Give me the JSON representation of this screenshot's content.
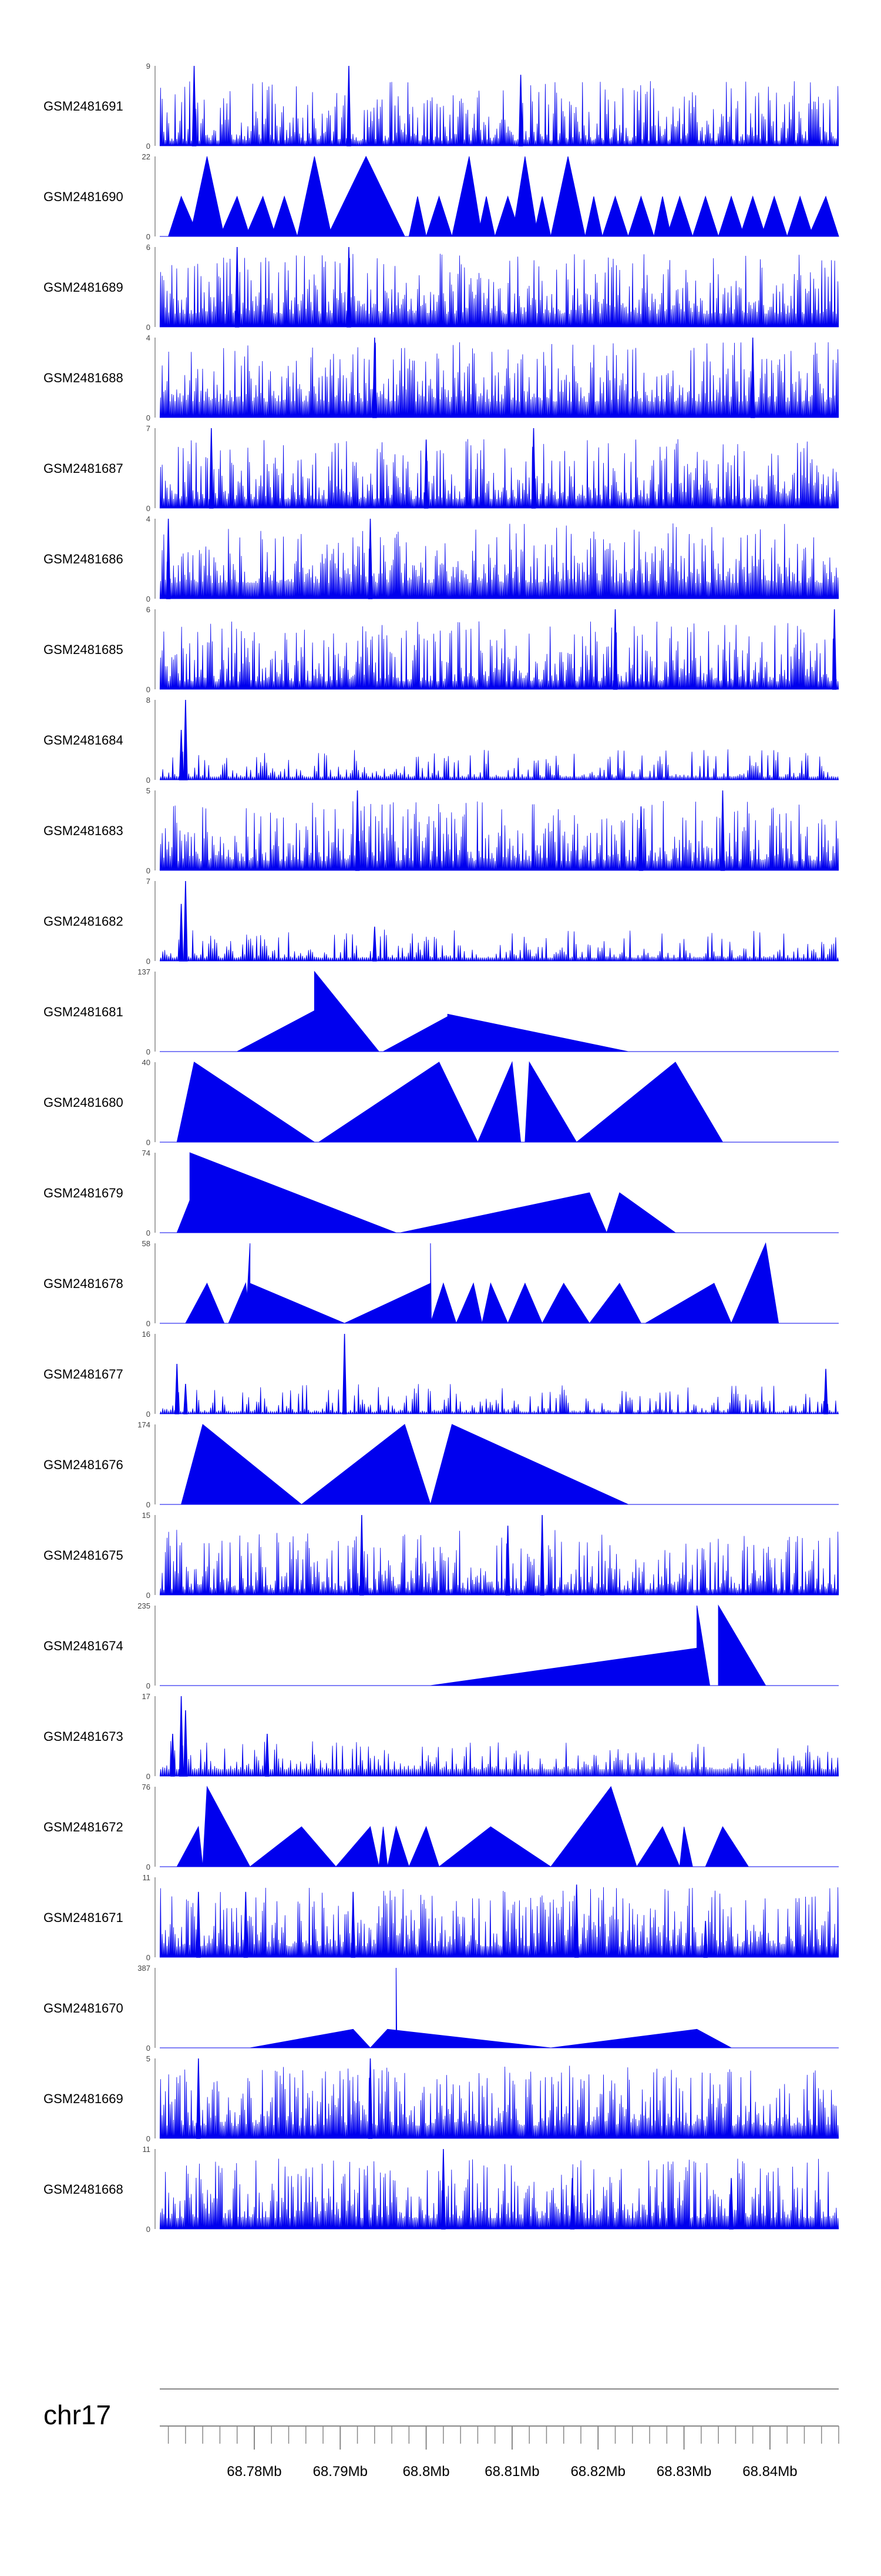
{
  "colors": {
    "signal": "#0000ee",
    "axis": "#888888",
    "text": "#000000"
  },
  "chart_data": {
    "type": "area",
    "title": "",
    "genome_axis": {
      "chromosome": "chr17",
      "unit": "Mb",
      "xlim": [
        68.769,
        68.848
      ],
      "ticks": [
        68.78,
        68.79,
        68.8,
        68.81,
        68.82,
        68.83,
        68.84
      ],
      "tick_labels": [
        "68.78Mb",
        "68.79Mb",
        "68.8Mb",
        "68.81Mb",
        "68.82Mb",
        "68.83Mb",
        "68.84Mb"
      ],
      "minor_tick_step": 0.002
    },
    "tracks": [
      {
        "name": "GSM2481691",
        "ymax": 9,
        "style": "dense",
        "baseline": 0.6,
        "seed": 11,
        "spikes": [
          [
            68.773,
            9
          ],
          [
            68.791,
            9
          ],
          [
            68.811,
            8
          ]
        ]
      },
      {
        "name": "GSM2481690",
        "ymax": 22,
        "style": "peaks",
        "seed": 12,
        "peaks": [
          [
            68.77,
            68.7715,
            68.7735,
            11
          ],
          [
            68.7725,
            68.7745,
            68.7765,
            22
          ],
          [
            68.776,
            68.778,
            68.7795,
            11
          ],
          [
            68.779,
            68.781,
            68.7825,
            11
          ],
          [
            68.782,
            68.7835,
            68.785,
            11
          ],
          [
            68.785,
            68.787,
            68.789,
            22
          ],
          [
            68.7885,
            68.793,
            68.7975,
            22
          ],
          [
            68.798,
            68.799,
            68.8,
            11
          ],
          [
            68.8,
            68.8015,
            68.803,
            11
          ],
          [
            68.803,
            68.805,
            68.8065,
            22
          ],
          [
            68.806,
            68.807,
            68.808,
            11
          ],
          [
            68.808,
            68.8095,
            68.811,
            11
          ],
          [
            68.81,
            68.8115,
            68.813,
            22
          ],
          [
            68.8125,
            68.8135,
            68.8145,
            11
          ],
          [
            68.8145,
            68.8165,
            68.8185,
            22
          ],
          [
            68.8185,
            68.8195,
            68.8205,
            11
          ],
          [
            68.8205,
            68.822,
            68.8235,
            11
          ],
          [
            68.8235,
            68.825,
            68.8265,
            11
          ],
          [
            68.8265,
            68.8275,
            68.8285,
            11
          ],
          [
            68.828,
            68.8295,
            68.831,
            11
          ],
          [
            68.831,
            68.8325,
            68.834,
            11
          ],
          [
            68.834,
            68.8355,
            68.837,
            11
          ],
          [
            68.8365,
            68.838,
            68.8395,
            11
          ],
          [
            68.839,
            68.8405,
            68.842,
            11
          ],
          [
            68.842,
            68.8435,
            68.845,
            11
          ],
          [
            68.8445,
            68.8465,
            68.848,
            11
          ]
        ]
      },
      {
        "name": "GSM2481689",
        "ymax": 6,
        "style": "dense",
        "baseline": 1.0,
        "seed": 13,
        "spikes": [
          [
            68.778,
            6
          ],
          [
            68.791,
            6
          ]
        ]
      },
      {
        "name": "GSM2481688",
        "ymax": 4,
        "style": "dense",
        "baseline": 0.8,
        "seed": 14,
        "spikes": [
          [
            68.794,
            4
          ],
          [
            68.838,
            4
          ]
        ]
      },
      {
        "name": "GSM2481687",
        "ymax": 7,
        "style": "dense",
        "baseline": 0.8,
        "seed": 15,
        "spikes": [
          [
            68.775,
            7
          ],
          [
            68.8125,
            7
          ],
          [
            68.8,
            6
          ]
        ]
      },
      {
        "name": "GSM2481686",
        "ymax": 4,
        "style": "dense",
        "baseline": 0.8,
        "seed": 16,
        "spikes": [
          [
            68.77,
            4
          ],
          [
            68.7935,
            4
          ]
        ]
      },
      {
        "name": "GSM2481685",
        "ymax": 6,
        "style": "dense",
        "baseline": 0.6,
        "seed": 17,
        "spikes": [
          [
            68.822,
            6
          ],
          [
            68.8475,
            6
          ]
        ]
      },
      {
        "name": "GSM2481684",
        "ymax": 8,
        "style": "sparse",
        "baseline": 0.3,
        "seed": 18,
        "spikes": [
          [
            68.772,
            8
          ],
          [
            68.7715,
            5
          ]
        ]
      },
      {
        "name": "GSM2481683",
        "ymax": 5,
        "style": "dense",
        "baseline": 0.6,
        "seed": 19,
        "spikes": [
          [
            68.792,
            5
          ],
          [
            68.8345,
            5
          ],
          [
            68.825,
            4
          ]
        ]
      },
      {
        "name": "GSM2481682",
        "ymax": 7,
        "style": "sparse",
        "baseline": 0.3,
        "seed": 20,
        "spikes": [
          [
            68.772,
            7
          ],
          [
            68.7715,
            5
          ],
          [
            68.794,
            3
          ]
        ]
      },
      {
        "name": "GSM2481681",
        "ymax": 137,
        "style": "peaks",
        "seed": 21,
        "peaks": [
          [
            68.778,
            68.787,
            68.787,
            70
          ],
          [
            68.787,
            68.787,
            68.7945,
            137
          ],
          [
            68.795,
            68.8025,
            68.8025,
            60
          ],
          [
            68.8025,
            68.8025,
            68.8235,
            64
          ]
        ]
      },
      {
        "name": "GSM2481680",
        "ymax": 40,
        "style": "peaks",
        "seed": 22,
        "peaks": [
          [
            68.771,
            68.773,
            68.787,
            40
          ],
          [
            68.7875,
            68.8015,
            68.806,
            40
          ],
          [
            68.806,
            68.81,
            68.811,
            40
          ],
          [
            68.8115,
            68.812,
            68.8175,
            40
          ],
          [
            68.8175,
            68.829,
            68.8345,
            40
          ]
        ]
      },
      {
        "name": "GSM2481679",
        "ymax": 74,
        "style": "peaks",
        "seed": 23,
        "peaks": [
          [
            68.771,
            68.7725,
            68.7725,
            30
          ],
          [
            68.7725,
            68.7725,
            68.7965,
            74
          ],
          [
            68.797,
            68.819,
            68.821,
            37
          ],
          [
            68.821,
            68.8225,
            68.829,
            37
          ]
        ]
      },
      {
        "name": "GSM2481678",
        "ymax": 58,
        "style": "peaks",
        "seed": 24,
        "peaks": [
          [
            68.772,
            68.7745,
            68.7765,
            29
          ],
          [
            68.777,
            68.779,
            68.7795,
            29
          ],
          [
            68.779,
            68.7795,
            68.7795,
            58
          ],
          [
            68.7795,
            68.7795,
            68.7905,
            29
          ],
          [
            68.7905,
            68.8005,
            68.8005,
            29
          ],
          [
            68.8005,
            68.8005,
            68.8006,
            58
          ],
          [
            68.8005,
            68.802,
            68.8035,
            29
          ],
          [
            68.8035,
            68.8055,
            68.8065,
            29
          ],
          [
            68.8065,
            68.8075,
            68.8095,
            29
          ],
          [
            68.8095,
            68.8115,
            68.8135,
            29
          ],
          [
            68.8135,
            68.816,
            68.819,
            29
          ],
          [
            68.819,
            68.8225,
            68.825,
            29
          ],
          [
            68.8255,
            68.8335,
            68.8355,
            29
          ],
          [
            68.8355,
            68.8395,
            68.841,
            58
          ],
          [
            68.8395,
            68.8395,
            68.8396,
            58
          ]
        ]
      },
      {
        "name": "GSM2481677",
        "ymax": 16,
        "style": "sparse",
        "baseline": 0.4,
        "seed": 25,
        "spikes": [
          [
            68.771,
            10
          ],
          [
            68.772,
            6
          ],
          [
            68.7905,
            16
          ],
          [
            68.8465,
            9
          ]
        ]
      },
      {
        "name": "GSM2481676",
        "ymax": 174,
        "style": "peaks",
        "seed": 26,
        "peaks": [
          [
            68.7715,
            68.774,
            68.7855,
            174
          ],
          [
            68.7855,
            68.7975,
            68.8005,
            174
          ],
          [
            68.8005,
            68.803,
            68.8235,
            174
          ]
        ]
      },
      {
        "name": "GSM2481675",
        "ymax": 15,
        "style": "dense",
        "baseline": 1.0,
        "seed": 27,
        "spikes": [
          [
            68.7925,
            15
          ],
          [
            68.8135,
            15
          ],
          [
            68.8095,
            13
          ]
        ]
      },
      {
        "name": "GSM2481674",
        "ymax": 235,
        "style": "peaks",
        "seed": 28,
        "peaks": [
          [
            68.8005,
            68.8315,
            68.8315,
            110
          ],
          [
            68.8315,
            68.8315,
            68.833,
            235
          ],
          [
            68.834,
            68.834,
            68.8395,
            235
          ]
        ]
      },
      {
        "name": "GSM2481673",
        "ymax": 17,
        "style": "sparse",
        "baseline": 1.5,
        "seed": 29,
        "spikes": [
          [
            68.7715,
            17
          ],
          [
            68.772,
            14
          ],
          [
            68.7705,
            9
          ],
          [
            68.7815,
            9
          ]
        ]
      },
      {
        "name": "GSM2481672",
        "ymax": 76,
        "style": "peaks",
        "seed": 30,
        "peaks": [
          [
            68.771,
            68.7735,
            68.774,
            38
          ],
          [
            68.774,
            68.7745,
            68.7795,
            76
          ],
          [
            68.7795,
            68.7855,
            68.7895,
            38
          ],
          [
            68.7895,
            68.7935,
            68.7945,
            38
          ],
          [
            68.7945,
            68.795,
            68.7955,
            38
          ],
          [
            68.7955,
            68.7965,
            68.798,
            38
          ],
          [
            68.798,
            68.8,
            68.8015,
            38
          ],
          [
            68.8015,
            68.8075,
            68.8145,
            38
          ],
          [
            68.8145,
            68.8215,
            68.8245,
            76
          ],
          [
            68.8245,
            68.8275,
            68.8295,
            38
          ],
          [
            68.8295,
            68.83,
            68.831,
            38
          ],
          [
            68.8325,
            68.8345,
            68.8375,
            38
          ]
        ]
      },
      {
        "name": "GSM2481671",
        "ymax": 11,
        "style": "dense",
        "baseline": 1.5,
        "seed": 31,
        "spikes": [
          [
            68.7735,
            9
          ],
          [
            68.779,
            9
          ],
          [
            68.7915,
            9
          ],
          [
            68.8175,
            10
          ],
          [
            68.8325,
            5
          ]
        ]
      },
      {
        "name": "GSM2481670",
        "ymax": 387,
        "style": "peaks",
        "seed": 32,
        "peaks": [
          [
            68.7795,
            68.7915,
            68.7935,
            90
          ],
          [
            68.7935,
            68.7955,
            68.8145,
            90
          ],
          [
            68.7965,
            68.7965,
            68.7966,
            387
          ],
          [
            68.8145,
            68.8315,
            68.8355,
            90
          ]
        ]
      },
      {
        "name": "GSM2481669",
        "ymax": 5,
        "style": "dense",
        "baseline": 0.8,
        "seed": 33,
        "spikes": [
          [
            68.7735,
            5
          ],
          [
            68.7935,
            5
          ]
        ]
      },
      {
        "name": "GSM2481668",
        "ymax": 11,
        "style": "dense",
        "baseline": 1.5,
        "seed": 34,
        "spikes": [
          [
            68.802,
            11
          ],
          [
            68.817,
            7
          ],
          [
            68.8355,
            7
          ]
        ]
      }
    ]
  }
}
